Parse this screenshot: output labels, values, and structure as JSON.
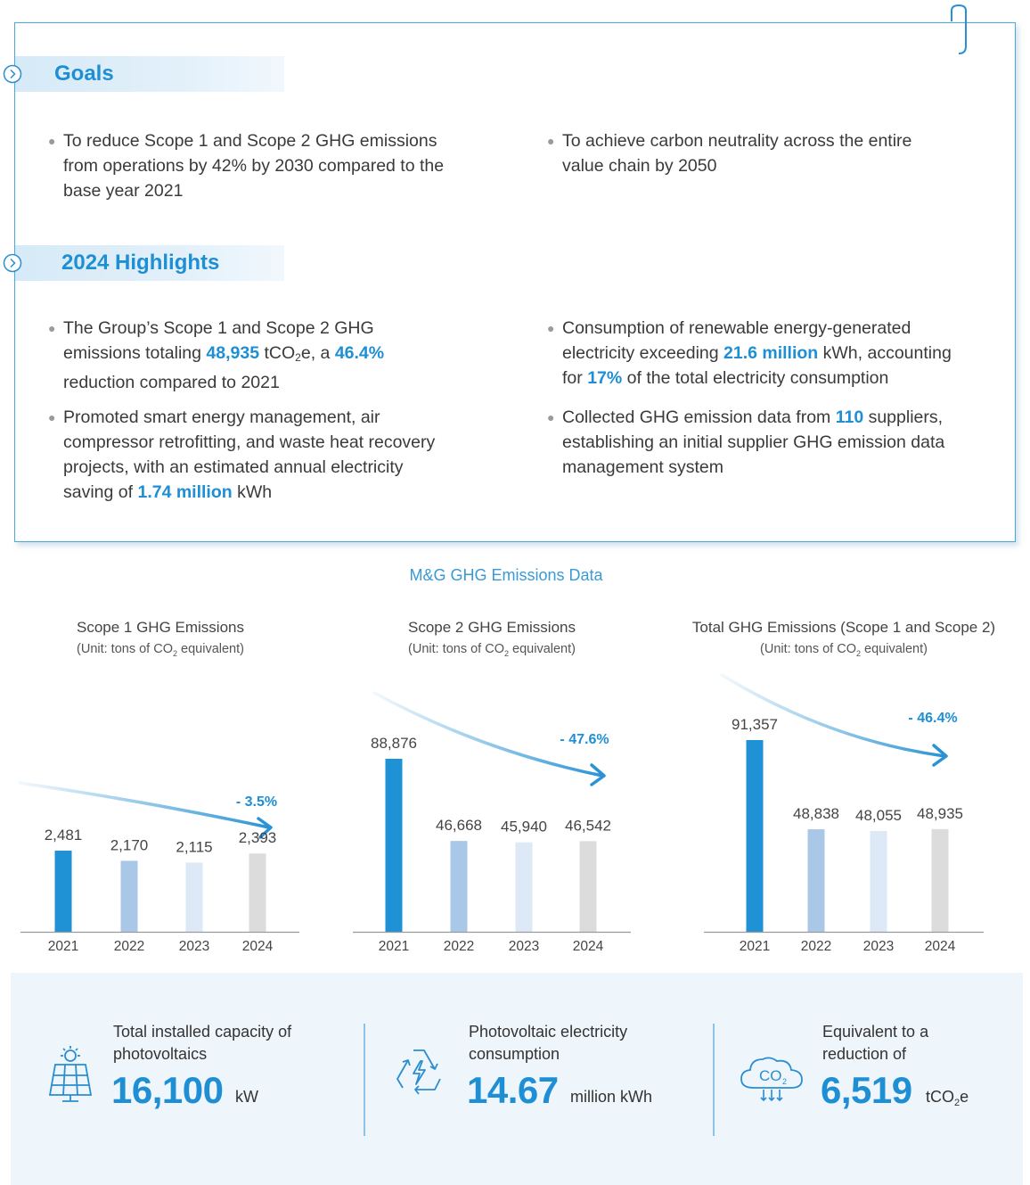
{
  "colors": {
    "accent": "#1e8fd4",
    "bar_2021": "#1f92d6",
    "bar_2022": "#a9c8e8",
    "bar_2023": "#dde9f6",
    "bar_2024": "#dcdcdc"
  },
  "goals": {
    "title": "Goals",
    "items": [
      [
        "To reduce Scope 1 and Scope 2 GHG emissions",
        "from operations by 42% by 2030 compared to the",
        "base year 2021"
      ],
      [
        "To achieve carbon neutrality across the entire",
        "value chain by 2050"
      ]
    ]
  },
  "highlights": {
    "title": "2024 Highlights",
    "b1": {
      "l1": "The Group’s Scope 1 and Scope 2 GHG",
      "l2a": "emissions totaling ",
      "v1": "48,935",
      "l2b": " tCO",
      "sub": "2",
      "l2c": "e, a ",
      "v2": "46.4%",
      "l3": "reduction compared to 2021"
    },
    "b2": {
      "l1": "Consumption of renewable energy-generated",
      "l2a": "electricity exceeding ",
      "v1": "21.6 million",
      "l2b": " kWh, accounting",
      "l3a": "for ",
      "v2": "17%",
      "l3b": " of the total electricity consumption"
    },
    "b3": {
      "l1": "Promoted smart energy management, air",
      "l2": "compressor retrofitting, and waste heat recovery",
      "l3": "projects, with an estimated annual electricity",
      "l4a": "saving of ",
      "v1": "1.74 million",
      "l4b": " kWh"
    },
    "b4": {
      "l1a": "Collected GHG emission data from ",
      "v1": "110",
      "l1b": " suppliers,",
      "l2": "establishing an initial supplier GHG emission data",
      "l3": "management system"
    }
  },
  "charts_title": "M&G GHG Emissions Data",
  "chart_data": [
    {
      "type": "bar",
      "title": "Scope 1 GHG Emissions",
      "unit_a": "(Unit: tons of CO",
      "unit_sub": "2",
      "unit_b": " equivalent)",
      "categories": [
        "2021",
        "2022",
        "2023",
        "2024"
      ],
      "values": [
        2481,
        2170,
        2115,
        2393
      ],
      "labels": [
        "2,481",
        "2,170",
        "2,115",
        "2,393"
      ],
      "trend": "- 3.5%"
    },
    {
      "type": "bar",
      "title": "Scope 2 GHG Emissions",
      "unit_a": "(Unit: tons of CO",
      "unit_sub": "2",
      "unit_b": " equivalent)",
      "categories": [
        "2021",
        "2022",
        "2023",
        "2024"
      ],
      "values": [
        88876,
        46668,
        45940,
        46542
      ],
      "labels": [
        "88,876",
        "46,668",
        "45,940",
        "46,542"
      ],
      "trend": "- 47.6%"
    },
    {
      "type": "bar",
      "title": "Total GHG Emissions (Scope 1 and Scope 2)",
      "unit_a": "(Unit: tons of CO",
      "unit_sub": "2",
      "unit_b": " equivalent)",
      "categories": [
        "2021",
        "2022",
        "2023",
        "2024"
      ],
      "values": [
        91357,
        48838,
        48055,
        48935
      ],
      "labels": [
        "91,357",
        "48,838",
        "48,055",
        "48,935"
      ],
      "trend": "- 46.4%"
    }
  ],
  "stats": [
    {
      "icon": "solar-panel-icon",
      "label_l1": "Total installed capacity of",
      "label_l2": "photovoltaics",
      "value": "16,100",
      "unit": "kW"
    },
    {
      "icon": "recycle-electricity-icon",
      "label_l1": "Photovoltaic electricity",
      "label_l2": "consumption",
      "value": "14.67",
      "unit": "million kWh"
    },
    {
      "icon": "co2-cloud-icon",
      "label_l1": "Equivalent to a",
      "label_l2": "reduction of",
      "value": "6,519",
      "unit_a": "tCO",
      "unit_sub": "2",
      "unit_b": "e"
    }
  ]
}
